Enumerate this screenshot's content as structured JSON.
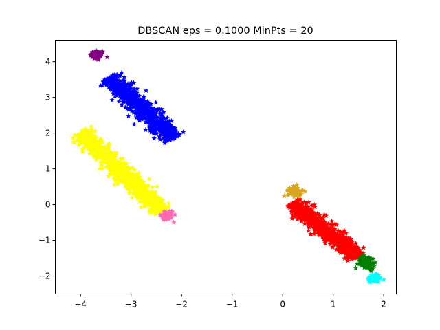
{
  "chart_data": {
    "type": "scatter",
    "title": "DBSCAN eps = 0.1000 MinPts = 20",
    "xlabel": "",
    "ylabel": "",
    "xlim": [
      -4.5,
      2.25
    ],
    "ylim": [
      -2.5,
      4.6
    ],
    "x_ticks": [
      -4,
      -3,
      -2,
      -1,
      0,
      1,
      2
    ],
    "y_ticks": [
      -2,
      -1,
      0,
      1,
      2,
      3,
      4
    ],
    "x_tick_labels": [
      "−4",
      "−3",
      "−2",
      "−1",
      "0",
      "1",
      "2"
    ],
    "y_tick_labels": [
      "−2",
      "−1",
      "0",
      "1",
      "2",
      "3",
      "4"
    ],
    "grid": false,
    "marker": "star",
    "clusters": [
      {
        "color": "#800080",
        "shape": "blob",
        "center": [
          -3.67,
          4.18
        ],
        "sx": 0.07,
        "sy": 0.07,
        "n": 70
      },
      {
        "color": "#0000ff",
        "shape": "segment",
        "start": [
          -3.45,
          3.55
        ],
        "end": [
          -2.15,
          1.85
        ],
        "width": 0.24,
        "n": 900
      },
      {
        "color": "#ffff00",
        "shape": "segment",
        "start": [
          -4.0,
          2.05
        ],
        "end": [
          -2.4,
          -0.2
        ],
        "width": 0.24,
        "n": 900
      },
      {
        "color": "#ff69b4",
        "shape": "blob",
        "center": [
          -2.28,
          -0.3
        ],
        "sx": 0.06,
        "sy": 0.07,
        "n": 60
      },
      {
        "color": "#daa520",
        "shape": "blob",
        "center": [
          0.24,
          0.37
        ],
        "sx": 0.07,
        "sy": 0.07,
        "n": 60
      },
      {
        "color": "#ff0000",
        "shape": "segment",
        "start": [
          0.2,
          0.05
        ],
        "end": [
          1.5,
          -1.45
        ],
        "width": 0.22,
        "n": 800
      },
      {
        "color": "#008000",
        "shape": "blob",
        "center": [
          1.66,
          -1.62
        ],
        "sx": 0.08,
        "sy": 0.09,
        "n": 90
      },
      {
        "color": "#00ffff",
        "shape": "blob",
        "center": [
          1.82,
          -2.05
        ],
        "sx": 0.07,
        "sy": 0.06,
        "n": 60
      }
    ]
  }
}
